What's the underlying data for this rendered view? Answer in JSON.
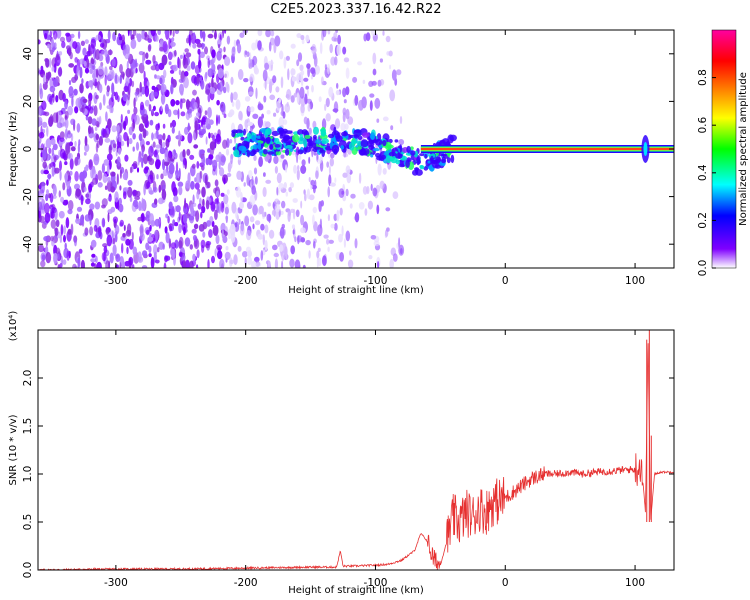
{
  "title": "C2E5.2023.337.16.42.R22",
  "chart_data": [
    {
      "type": "heatmap",
      "xlabel": "Height of straight line (km)",
      "ylabel": "Frequency (Hz)",
      "xlim": [
        -360,
        130
      ],
      "ylim": [
        -50,
        50
      ],
      "x_ticks": [
        -300,
        -200,
        -100,
        0,
        100
      ],
      "y_ticks": [
        -40,
        -20,
        0,
        20,
        40
      ],
      "colorbar": {
        "label": "Normalized spectral amplitude",
        "range": [
          0.0,
          1.0
        ],
        "ticks": [
          "0.0",
          "0.2",
          "0.4",
          "0.6",
          "0.8"
        ],
        "colors": [
          "#ffffff",
          "#8000ff",
          "#0000ff",
          "#00ffff",
          "#00ff00",
          "#ffff00",
          "#ff8000",
          "#ff0000",
          "#ff00a0"
        ]
      },
      "features": {
        "noise_region_x": [
          -360,
          -100
        ],
        "noise_freq_range": [
          -50,
          50
        ],
        "carrier_line_freq": 0,
        "carrier_start_x": -65,
        "wobble_region_x": [
          -210,
          -40
        ],
        "end_spike_x": 108
      }
    },
    {
      "type": "line",
      "xlabel": "Height of straight line (km)",
      "ylabel": "SNR (10 * v/v)",
      "scale_note": "(x10⁴)",
      "xlim": [
        -360,
        130
      ],
      "ylim": [
        0,
        2.5
      ],
      "x_ticks": [
        -300,
        -200,
        -100,
        0,
        100
      ],
      "y_ticks": [
        "0.0",
        "0.5",
        "1.0",
        "1.5",
        "2.0"
      ],
      "series": [
        {
          "color": "#e63030",
          "x": [
            -360,
            -300,
            -250,
            -200,
            -150,
            -130,
            -127,
            -125,
            -120,
            -100,
            -90,
            -80,
            -70,
            -65,
            -60,
            -55,
            -50,
            -45,
            -40,
            -35,
            -30,
            -25,
            -20,
            -15,
            -10,
            -5,
            0,
            10,
            20,
            30,
            40,
            50,
            60,
            70,
            80,
            90,
            100,
            105,
            108,
            110,
            112,
            115,
            120,
            130
          ],
          "y": [
            0.0,
            0.01,
            0.01,
            0.02,
            0.03,
            0.03,
            0.2,
            0.04,
            0.04,
            0.05,
            0.06,
            0.1,
            0.2,
            0.38,
            0.3,
            0.1,
            0.05,
            0.3,
            0.55,
            0.5,
            0.6,
            0.55,
            0.65,
            0.6,
            0.7,
            0.72,
            0.75,
            0.85,
            0.95,
            1.0,
            1.0,
            1.02,
            1.0,
            1.02,
            1.03,
            1.04,
            1.05,
            1.1,
            0.6,
            2.4,
            0.5,
            1.0,
            1.02,
            1.02
          ]
        }
      ]
    }
  ]
}
